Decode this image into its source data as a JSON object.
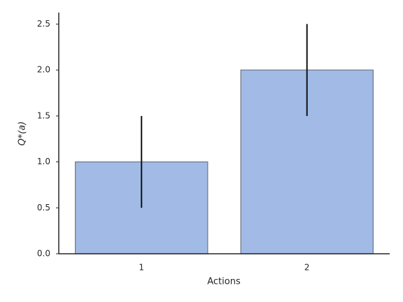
{
  "chart_data": {
    "type": "bar",
    "categories": [
      "1",
      "2"
    ],
    "values": [
      1.0,
      2.0
    ],
    "errors": [
      0.5,
      0.5
    ],
    "color": "#a1bbe6",
    "edgecolor": "#6e7682",
    "errorcolor": "#111111",
    "xlabel": "Actions",
    "ylabel": "Q*(a)",
    "ylim": [
      0,
      2.625
    ],
    "yticks": [
      {
        "value": 0,
        "label": "0.0"
      },
      {
        "value": 0.5,
        "label": "0.5"
      },
      {
        "value": 1,
        "label": "1.0"
      },
      {
        "value": 1.5,
        "label": "1.5"
      },
      {
        "value": 2,
        "label": "2.0"
      },
      {
        "value": 2.5,
        "label": "2.5"
      }
    ],
    "grid": false
  }
}
